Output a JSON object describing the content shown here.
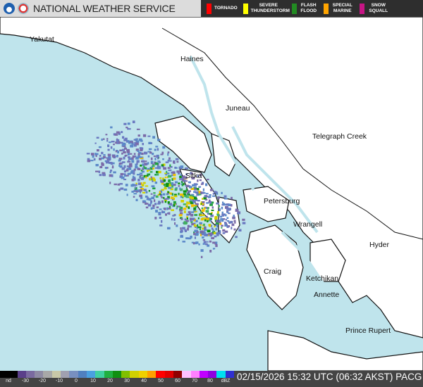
{
  "header": {
    "title": "NATIONAL WEATHER SERVICE",
    "logos": [
      "noaa-logo",
      "nws-logo"
    ]
  },
  "warnings": [
    {
      "label": "TORNADO",
      "color": "#ff0000"
    },
    {
      "label": "SEVERE THUNDERSTORM",
      "color": "#ffff00"
    },
    {
      "label": "FLASH FLOOD",
      "color": "#228b22"
    },
    {
      "label": "SPECIAL MARINE",
      "color": "#ffa500"
    },
    {
      "label": "SNOW SQUALL",
      "color": "#c71585"
    }
  ],
  "places": [
    "Yakutat",
    "Haines",
    "Juneau",
    "Telegraph Creek",
    "Sitka",
    "Petersburg",
    "Wrangell",
    "Hyder",
    "Craig",
    "Ketchikan",
    "Annette",
    "Prince Rupert"
  ],
  "colors": {
    "water": "#bfe4ec",
    "land": "#ffffff"
  },
  "legend": {
    "ticks": [
      "nd",
      "-30",
      "-20",
      "-10",
      "0",
      "10",
      "20",
      "30",
      "40",
      "50",
      "60",
      "70",
      "80",
      "dBZ"
    ],
    "colors": [
      "#000000",
      "#000000",
      "#5a3f8a",
      "#7a6aa0",
      "#8e8aa4",
      "#a8a8a8",
      "#c8c8a8",
      "#a0a0b0",
      "#7890c0",
      "#5080c0",
      "#4aa0e0",
      "#40d0a0",
      "#20b040",
      "#109010",
      "#80c000",
      "#d0d000",
      "#f0d000",
      "#ffa000",
      "#ff0000",
      "#e00000",
      "#900000",
      "#ffc0ff",
      "#ff80ff",
      "#c000ff",
      "#9000e0",
      "#00e0f0",
      "#3030d0"
    ]
  },
  "timestamp": "02/15/2026 15:32 UTC (06:32 AKST) PACG"
}
